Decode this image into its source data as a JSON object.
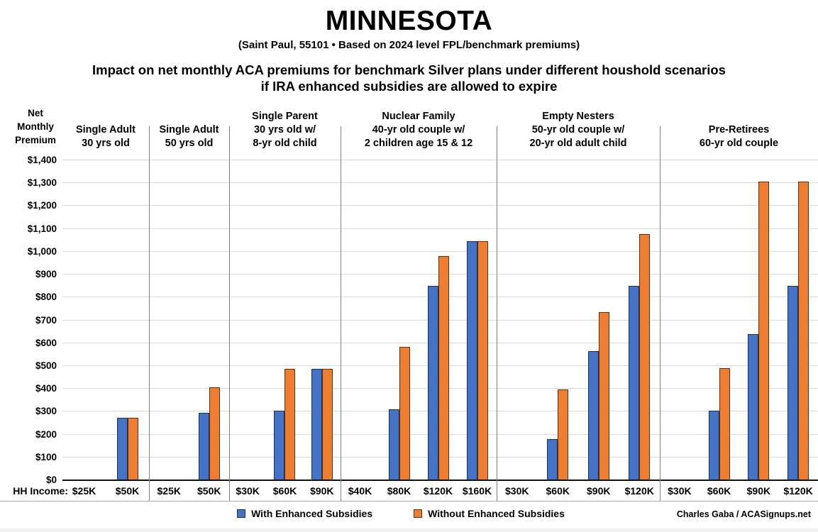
{
  "title": "MINNESOTA",
  "subtitle": "(Saint Paul, 55101 • Based on 2024 level FPL/benchmark premiums)",
  "heading_line1": "Impact on net monthly ACA premiums for benchmark Silver plans under different houshold scenarios",
  "heading_line2": "if IRA enhanced subsidies are allowed to expire",
  "y_axis_title": "Net\nMonthly\nPremium",
  "hh_income_label": "HH Income:",
  "legend": [
    {
      "label": "With Enhanced Subsidies",
      "color": "#4472C4"
    },
    {
      "label": "Without Enhanced Subsidies",
      "color": "#ED7D31"
    }
  ],
  "credit": "Charles Gaba / ACASignups.net",
  "colors": {
    "with_enhanced": "#4472C4",
    "without_enhanced": "#ED7D31",
    "gridline": "#d9d9d9",
    "separator": "#7f7f7f"
  },
  "chart_data": {
    "type": "bar",
    "title": "MINNESOTA — Impact on net monthly ACA premiums for benchmark Silver plans",
    "ylabel": "Net Monthly Premium",
    "xlabel": "HH Income",
    "ylim": [
      0,
      1400
    ],
    "ytick_step": 100,
    "ytick_labels": [
      "$0",
      "$100",
      "$200",
      "$300",
      "$400",
      "$500",
      "$600",
      "$700",
      "$800",
      "$900",
      "$1,000",
      "$1,100",
      "$1,200",
      "$1,300",
      "$1,400"
    ],
    "grid": true,
    "legend_position": "bottom",
    "series_names": [
      "With Enhanced Subsidies",
      "Without Enhanced Subsidies"
    ],
    "groups": [
      {
        "header": [
          "Single Adult",
          "30 yrs old"
        ],
        "incomes": [
          "$25K",
          "$50K"
        ],
        "with_enhanced": [
          0,
          273
        ],
        "without_enhanced": [
          0,
          273
        ]
      },
      {
        "header": [
          "Single Adult",
          "50 yrs old"
        ],
        "incomes": [
          "$25K",
          "$50K"
        ],
        "with_enhanced": [
          0,
          295
        ],
        "without_enhanced": [
          0,
          408
        ]
      },
      {
        "header": [
          "Single Parent",
          "30 yrs old w/",
          "8-yr old child"
        ],
        "incomes": [
          "$30K",
          "$60K",
          "$90K"
        ],
        "with_enhanced": [
          0,
          304,
          487
        ],
        "without_enhanced": [
          0,
          486,
          487
        ]
      },
      {
        "header": [
          "Nuclear Family",
          "40-yr old couple w/",
          "2 children age 15 & 12"
        ],
        "incomes": [
          "$40K",
          "$80K",
          "$120K",
          "$160K"
        ],
        "with_enhanced": [
          0,
          311,
          850,
          1046
        ],
        "without_enhanced": [
          0,
          583,
          982,
          1046
        ]
      },
      {
        "header": [
          "Empty Nesters",
          "50-yr old couple w/",
          "20-yr old adult child"
        ],
        "incomes": [
          "$30K",
          "$60K",
          "$90K",
          "$120K"
        ],
        "with_enhanced": [
          0,
          180,
          565,
          850
        ],
        "without_enhanced": [
          0,
          398,
          736,
          1077
        ]
      },
      {
        "header": [
          "Pre-Retirees",
          "60-yr old couple"
        ],
        "incomes": [
          "$30K",
          "$60K",
          "$90K",
          "$120K"
        ],
        "with_enhanced": [
          0,
          303,
          640,
          850
        ],
        "without_enhanced": [
          0,
          490,
          1308,
          1308
        ]
      }
    ]
  }
}
